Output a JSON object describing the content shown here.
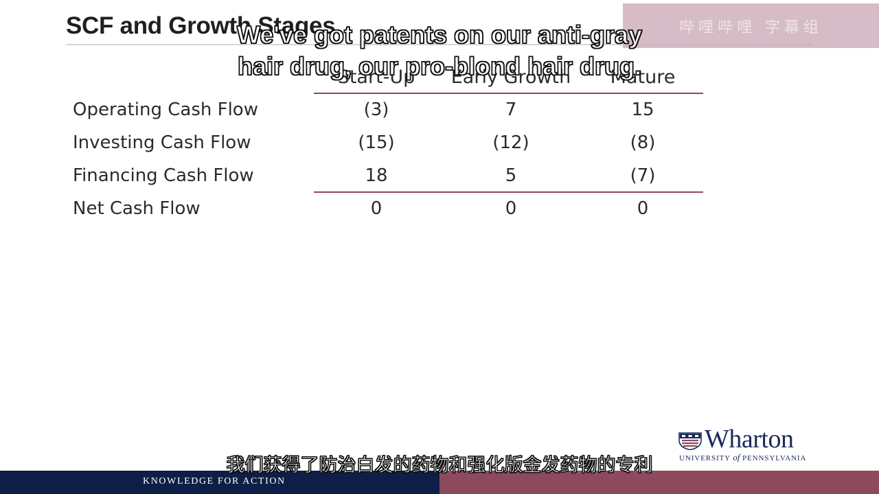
{
  "slide": {
    "title": "SCF and Growth Stages",
    "watermark_text": "哔哩哔哩 字幕组"
  },
  "subtitles": {
    "en_line1": "We've got patents on our anti-gray",
    "en_line2": "hair drug, our pro-blond hair drug.",
    "zh": "我们获得了防治白发的药物和强化版金发药物的专利"
  },
  "table": {
    "columns": [
      "Start-Up",
      "Early Growth",
      "Mature"
    ],
    "rows": [
      {
        "label": "Operating Cash Flow",
        "values": [
          "(3)",
          "7",
          "15"
        ]
      },
      {
        "label": "Investing Cash Flow",
        "values": [
          "(15)",
          "(12)",
          "(8)"
        ]
      },
      {
        "label": "Financing Cash Flow",
        "values": [
          "18",
          "5",
          "(7)"
        ]
      },
      {
        "label": "Net Cash Flow",
        "values": [
          "0",
          "0",
          "0"
        ]
      }
    ]
  },
  "logo": {
    "word": "Wharton",
    "sub_prefix": "UNIVERSITY ",
    "sub_of": "of",
    "sub_suffix": " PENNSYLVANIA"
  },
  "footer": {
    "tagline": "KNOWLEDGE FOR ACTION"
  },
  "colors": {
    "navy": "#0e1f47",
    "maroon": "#8d4a5d",
    "table_rule": "#8c4a5c",
    "watermark": "#c8a6b4"
  }
}
